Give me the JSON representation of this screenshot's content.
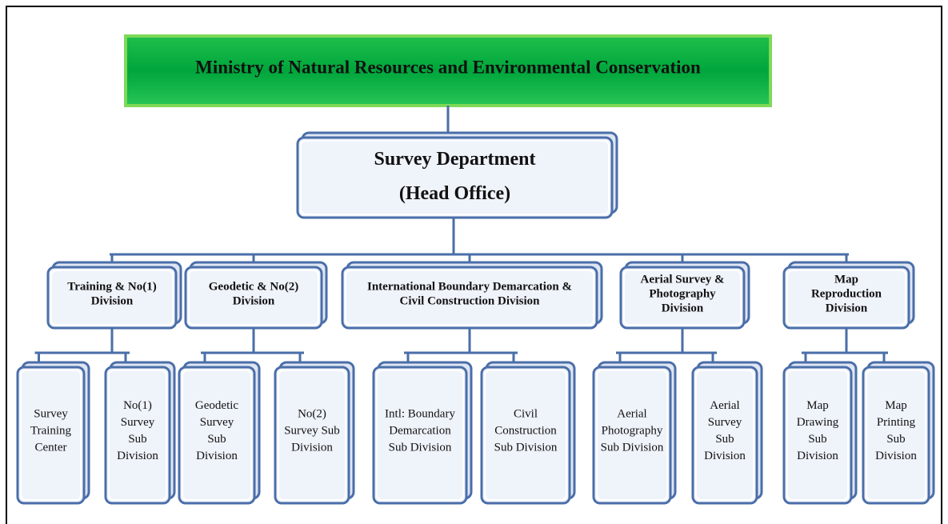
{
  "root": {
    "label": "Ministry of Natural Resources and Environmental Conservation"
  },
  "head": {
    "lines": [
      "Survey Department",
      "(Head Office)"
    ]
  },
  "divisions": [
    {
      "lines": [
        "Training & No(1)",
        "Division"
      ],
      "subdivisions": [
        {
          "lines": [
            "Survey",
            "Training",
            "Center"
          ]
        },
        {
          "lines": [
            "No(1)",
            "Survey",
            "Sub",
            "Division"
          ]
        }
      ]
    },
    {
      "lines": [
        "Geodetic & No(2)",
        "Division"
      ],
      "subdivisions": [
        {
          "lines": [
            "Geodetic",
            "Survey",
            "Sub",
            "Division"
          ]
        },
        {
          "lines": [
            "No(2)",
            "Survey Sub",
            "Division"
          ]
        }
      ]
    },
    {
      "lines": [
        "International Boundary Demarcation &",
        "Civil Construction Division"
      ],
      "subdivisions": [
        {
          "lines": [
            "Intl: Boundary",
            "Demarcation",
            "Sub Division"
          ]
        },
        {
          "lines": [
            "Civil",
            "Construction",
            "Sub Division"
          ]
        }
      ]
    },
    {
      "lines": [
        "Aerial Survey &",
        "Photography",
        "Division"
      ],
      "subdivisions": [
        {
          "lines": [
            "Aerial",
            "Photography",
            "Sub Division"
          ]
        },
        {
          "lines": [
            "Aerial",
            "Survey",
            "Sub",
            "Division"
          ]
        }
      ]
    },
    {
      "lines": [
        "Map",
        "Reproduction",
        "Division"
      ],
      "subdivisions": [
        {
          "lines": [
            "Map",
            "Drawing",
            "Sub",
            "Division"
          ]
        },
        {
          "lines": [
            "Map",
            "Printing",
            "Sub",
            "Division"
          ]
        }
      ]
    }
  ]
}
